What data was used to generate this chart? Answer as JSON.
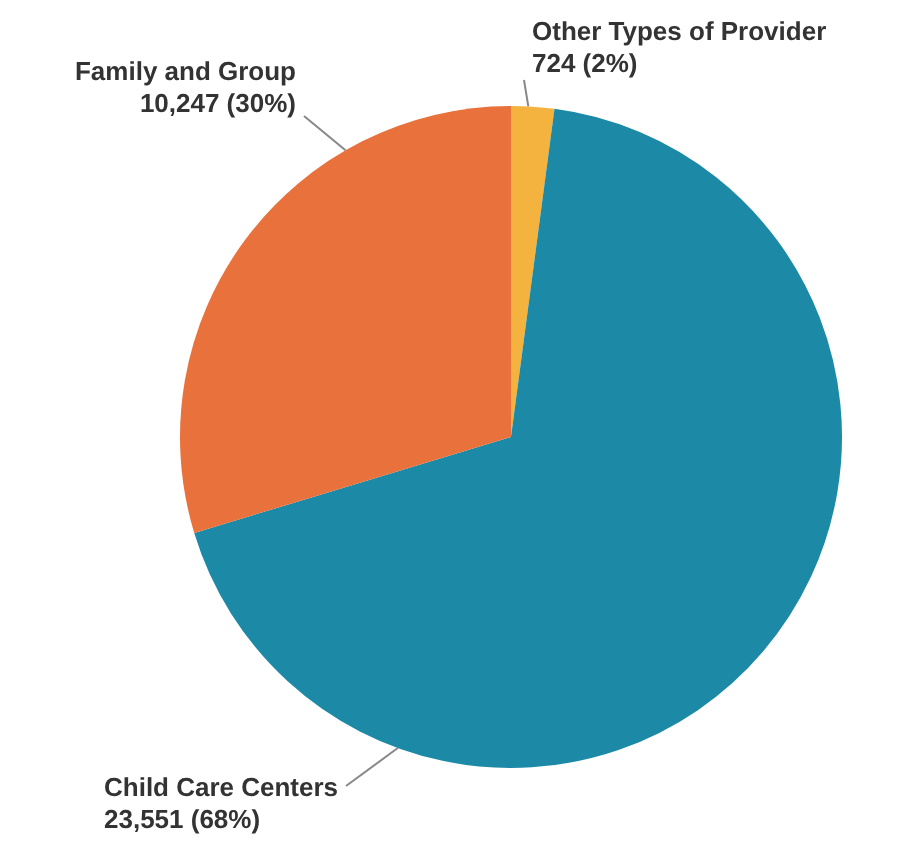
{
  "chart_data": {
    "type": "pie",
    "categories": [
      "Other Types of Provider",
      "Child Care Centers",
      "Family and Group"
    ],
    "values": [
      724,
      23551,
      10247
    ],
    "colors": [
      "#f4b23e",
      "#1c8aa6",
      "#e8713c"
    ],
    "value_labels": [
      "724 (2%)",
      "23,551 (68%)",
      "10,247 (30%)"
    ],
    "legend": false
  }
}
